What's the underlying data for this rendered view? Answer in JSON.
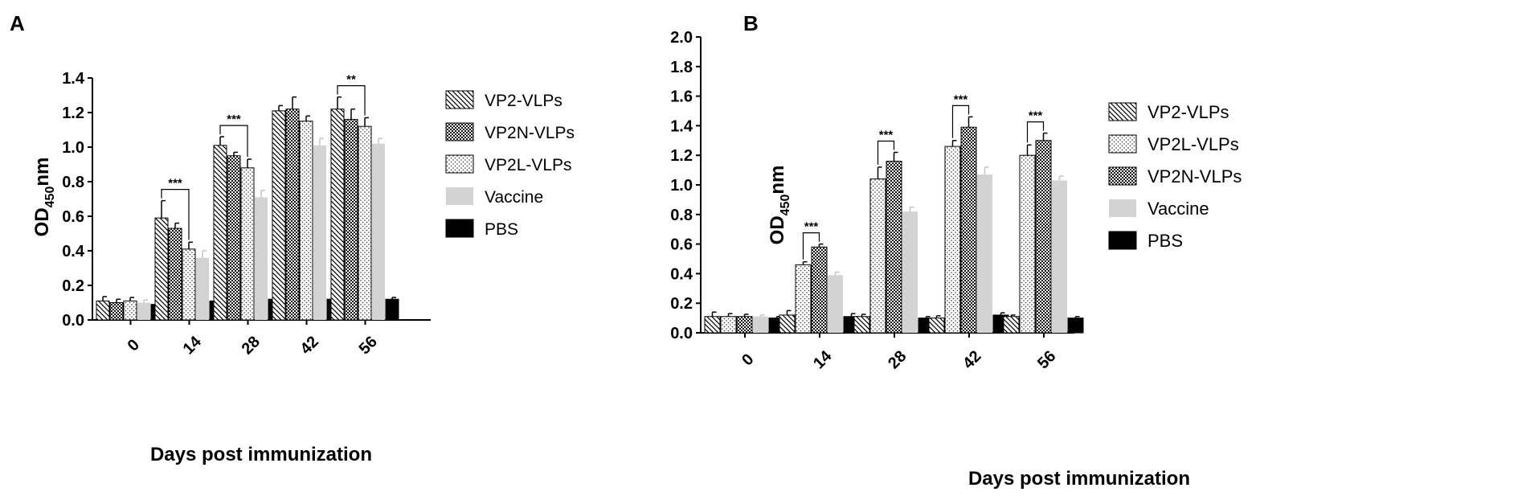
{
  "panels": [
    {
      "label": "A",
      "chart_data": {
        "type": "bar",
        "title": "",
        "xlabel": "Days post immunization",
        "ylabel_main": "OD",
        "ylabel_sub": "450",
        "ylabel_suffix": "nm",
        "ylim": [
          0,
          1.4
        ],
        "yticks": [
          "0.0",
          "0.2",
          "0.4",
          "0.6",
          "0.8",
          "1.0",
          "1.2",
          "1.4"
        ],
        "categories": [
          "0",
          "14",
          "28",
          "42",
          "56"
        ],
        "series": [
          {
            "name": "VP2-VLPs",
            "pattern": "hatch",
            "values": [
              0.11,
              0.59,
              1.01,
              1.21,
              1.22
            ],
            "errors": [
              0.025,
              0.1,
              0.05,
              0.03,
              0.07
            ]
          },
          {
            "name": "VP2N-VLPs",
            "pattern": "checker",
            "values": [
              0.1,
              0.53,
              0.95,
              1.22,
              1.16
            ],
            "errors": [
              0.02,
              0.03,
              0.02,
              0.07,
              0.06
            ]
          },
          {
            "name": "VP2L-VLPs",
            "pattern": "dots",
            "values": [
              0.11,
              0.41,
              0.88,
              1.15,
              1.12
            ],
            "errors": [
              0.02,
              0.04,
              0.05,
              0.03,
              0.05
            ]
          },
          {
            "name": "Vaccine",
            "pattern": "gray",
            "values": [
              0.1,
              0.36,
              0.71,
              1.01,
              1.02
            ],
            "errors": [
              0.015,
              0.04,
              0.04,
              0.04,
              0.03
            ]
          },
          {
            "name": "PBS",
            "pattern": "black",
            "values": [
              0.09,
              0.11,
              0.12,
              0.12,
              0.12
            ],
            "errors": [
              0.02,
              0.015,
              0.02,
              0.03,
              0.01
            ]
          }
        ],
        "significance": [
          {
            "category": "14",
            "from_series": 0,
            "to_series": 2,
            "label": "***"
          },
          {
            "category": "28",
            "from_series": 0,
            "to_series": 2,
            "label": "***"
          },
          {
            "category": "56",
            "from_series": 0,
            "to_series": 2,
            "label": "**"
          }
        ],
        "legend_position": "right"
      }
    },
    {
      "label": "B",
      "chart_data": {
        "type": "bar",
        "title": "",
        "xlabel": "Days post immunization",
        "ylabel_main": "OD",
        "ylabel_sub": "450",
        "ylabel_suffix": "nm",
        "ylim": [
          0,
          2.0
        ],
        "yticks": [
          "0.0",
          "0.2",
          "0.4",
          "0.6",
          "0.8",
          "1.0",
          "1.2",
          "1.4",
          "1.6",
          "1.8",
          "2.0"
        ],
        "categories": [
          "0",
          "14",
          "28",
          "42",
          "56"
        ],
        "series": [
          {
            "name": "VP2-VLPs",
            "pattern": "hatch",
            "values": [
              0.11,
              0.12,
              0.11,
              0.1,
              0.11
            ],
            "errors": [
              0.03,
              0.03,
              0.015,
              0.015,
              0.01
            ]
          },
          {
            "name": "VP2L-VLPs",
            "pattern": "dots",
            "values": [
              0.11,
              0.46,
              1.04,
              1.26,
              1.2
            ],
            "errors": [
              0.02,
              0.02,
              0.08,
              0.04,
              0.07
            ]
          },
          {
            "name": "VP2N-VLPs",
            "pattern": "checker",
            "values": [
              0.11,
              0.58,
              1.16,
              1.39,
              1.3
            ],
            "errors": [
              0.015,
              0.02,
              0.06,
              0.07,
              0.05
            ]
          },
          {
            "name": "Vaccine",
            "pattern": "gray",
            "values": [
              0.11,
              0.39,
              0.82,
              1.07,
              1.03
            ],
            "errors": [
              0.01,
              0.02,
              0.03,
              0.05,
              0.03
            ]
          },
          {
            "name": "PBS",
            "pattern": "black",
            "values": [
              0.1,
              0.11,
              0.1,
              0.12,
              0.1
            ],
            "errors": [
              0.01,
              0.02,
              0.01,
              0.015,
              0.01
            ]
          }
        ],
        "significance": [
          {
            "category": "14",
            "from_series": 1,
            "to_series": 2,
            "label": "***"
          },
          {
            "category": "28",
            "from_series": 1,
            "to_series": 2,
            "label": "***"
          },
          {
            "category": "42",
            "from_series": 1,
            "to_series": 2,
            "label": "***"
          },
          {
            "category": "56",
            "from_series": 1,
            "to_series": 2,
            "label": "***"
          }
        ],
        "legend_position": "right"
      }
    }
  ]
}
